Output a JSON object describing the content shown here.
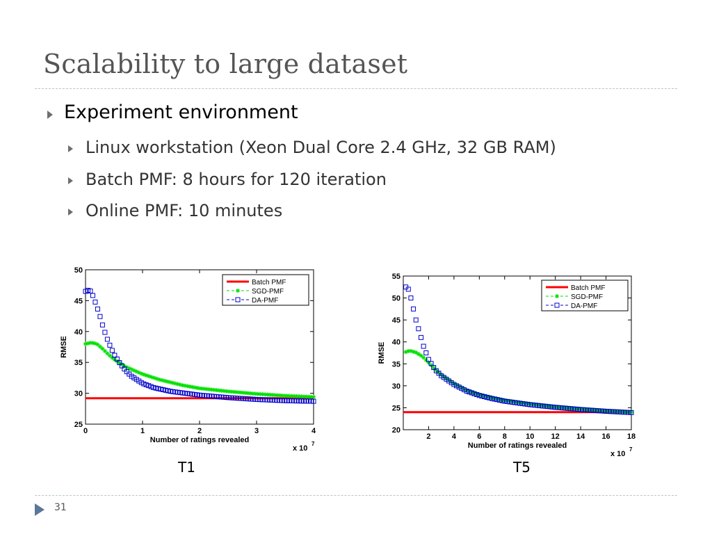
{
  "slide": {
    "title": "Scalability to large dataset",
    "bullet_main": "Experiment environment",
    "sub_bullets": [
      "Linux workstation (Xeon Dual Core 2.4 GHz, 32 GB RAM)",
      "Batch PMF: 8 hours for 120 iteration",
      "Online PMF: 10 minutes"
    ],
    "page_number": "31"
  },
  "chart_data": [
    {
      "type": "line",
      "caption": "T1",
      "xlabel": "Number of ratings revealed",
      "ylabel": "RMSE",
      "x_multiplier": "x 10",
      "x_multiplier_exp": "7",
      "xlim": [
        0,
        4
      ],
      "ylim": [
        25,
        50
      ],
      "xticks": [
        0,
        1,
        2,
        3,
        4
      ],
      "yticks": [
        25,
        30,
        35,
        40,
        45,
        50
      ],
      "grid": false,
      "legend_position": "top-right",
      "series": [
        {
          "name": "Batch PMF",
          "color": "#ff0000",
          "marker": "none",
          "x": [
            0,
            4
          ],
          "y": [
            29.2,
            29.2
          ]
        },
        {
          "name": "SGD-PMF",
          "color": "#00e000",
          "marker": "asterisk",
          "x": [
            0,
            0.1,
            0.2,
            0.3,
            0.4,
            0.5,
            0.7,
            1.0,
            1.3,
            1.7,
            2.0,
            2.5,
            3.0,
            3.5,
            4.0
          ],
          "y": [
            38.0,
            38.2,
            38.0,
            37.2,
            36.3,
            35.5,
            34.3,
            33.1,
            32.2,
            31.3,
            30.8,
            30.3,
            29.9,
            29.6,
            29.4
          ]
        },
        {
          "name": "DA-PMF",
          "color": "#0000cc",
          "marker": "square",
          "x": [
            0,
            0.05,
            0.1,
            0.15,
            0.2,
            0.25,
            0.3,
            0.35,
            0.4,
            0.5,
            0.6,
            0.7,
            0.8,
            1.0,
            1.2,
            1.5,
            2.0,
            2.5,
            3.0,
            3.5,
            4.0
          ],
          "y": [
            46.5,
            46.7,
            46.5,
            45.3,
            44.0,
            42.6,
            41.0,
            39.6,
            38.3,
            36.3,
            34.9,
            33.7,
            32.8,
            31.6,
            30.9,
            30.3,
            29.7,
            29.3,
            29.0,
            28.8,
            28.7
          ]
        }
      ]
    },
    {
      "type": "line",
      "caption": "T5",
      "xlabel": "Number of ratings revealed",
      "ylabel": "RMSE",
      "x_multiplier": "x 10",
      "x_multiplier_exp": "7",
      "xlim": [
        0,
        18
      ],
      "ylim": [
        20,
        55
      ],
      "xticks": [
        2,
        4,
        6,
        8,
        10,
        12,
        14,
        16,
        18
      ],
      "yticks": [
        20,
        25,
        30,
        35,
        40,
        45,
        50,
        55
      ],
      "grid": false,
      "legend_position": "top-right",
      "series": [
        {
          "name": "Batch PMF",
          "color": "#ff0000",
          "marker": "none",
          "x": [
            0,
            18
          ],
          "y": [
            24.0,
            24.0
          ]
        },
        {
          "name": "SGD-PMF",
          "color": "#00e000",
          "marker": "asterisk",
          "x": [
            0.2,
            0.5,
            1.0,
            1.5,
            2.0,
            2.5,
            3.0,
            4.0,
            5.0,
            6.0,
            7.0,
            8.0,
            10.0,
            12.0,
            14.0,
            16.0,
            18.0
          ],
          "y": [
            37.7,
            38.0,
            37.6,
            36.7,
            35.3,
            33.8,
            32.5,
            30.5,
            29.0,
            28.0,
            27.3,
            26.7,
            25.9,
            25.2,
            24.7,
            24.3,
            24.0
          ]
        },
        {
          "name": "DA-PMF",
          "color": "#0000cc",
          "marker": "square",
          "x": [
            0.2,
            0.4,
            0.6,
            0.8,
            1.0,
            1.3,
            1.6,
            2.0,
            2.5,
            3.0,
            4.0,
            5.0,
            6.0,
            7.0,
            8.0,
            10.0,
            12.0,
            14.0,
            16.0,
            18.0
          ],
          "y": [
            52.5,
            52.0,
            50.0,
            47.5,
            45.0,
            42.0,
            39.0,
            36.0,
            33.7,
            32.3,
            30.3,
            28.8,
            27.8,
            27.1,
            26.5,
            25.7,
            25.1,
            24.6,
            24.2,
            23.9
          ]
        }
      ]
    }
  ]
}
